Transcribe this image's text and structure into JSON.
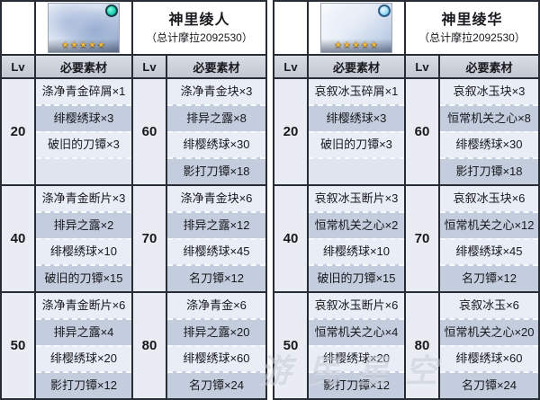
{
  "table": {
    "header": {
      "lv_label": "Lv",
      "materials_label": "必要素材"
    },
    "stars": "★★★★★"
  },
  "watermark": "游民星空",
  "colors": {
    "grid_line": "#272c35",
    "row_light": "#e9edf5",
    "row_dark": "#c4cddd",
    "header_bg": "#c8cdd6",
    "star_gold": "#f0b63a"
  },
  "characters": [
    {
      "name": "神里绫人",
      "mora_total": "（总计摩拉2092530）",
      "element": "hydro",
      "levels": [
        {
          "lv": "20",
          "materials": [
            "涤净青金碎屑×1",
            "绯樱绣球×3",
            "破旧的刀镡×3"
          ]
        },
        {
          "lv": "40",
          "materials": [
            "涤净青金断片×3",
            "排异之露×2",
            "绯樱绣球×10",
            "破旧的刀镡×15"
          ]
        },
        {
          "lv": "50",
          "materials": [
            "涤净青金断片×6",
            "排异之露×4",
            "绯樱绣球×20",
            "影打刀镡×12"
          ]
        },
        {
          "lv": "60",
          "materials": [
            "涤净青金块×3",
            "排异之露×8",
            "绯樱绣球×30",
            "影打刀镡×18"
          ]
        },
        {
          "lv": "70",
          "materials": [
            "涤净青金块×6",
            "排异之露×12",
            "绯樱绣球×45",
            "名刀镡×12"
          ]
        },
        {
          "lv": "80",
          "materials": [
            "涤净青金×6",
            "排异之露×20",
            "绯樱绣球×60",
            "名刀镡×24"
          ]
        }
      ]
    },
    {
      "name": "神里绫华",
      "mora_total": "（总计摩拉2092530）",
      "element": "cryo",
      "levels": [
        {
          "lv": "20",
          "materials": [
            "哀叙冰玉碎屑×1",
            "绯樱绣球×3",
            "破旧的刀镡×3"
          ]
        },
        {
          "lv": "40",
          "materials": [
            "哀叙冰玉断片×3",
            "恒常机关之心×2",
            "绯樱绣球×10",
            "破旧的刀镡×15"
          ]
        },
        {
          "lv": "50",
          "materials": [
            "哀叙冰玉断片×6",
            "恒常机关之心×4",
            "绯樱绣球×20",
            "影打刀镡×12"
          ]
        },
        {
          "lv": "60",
          "materials": [
            "哀叙冰玉块×3",
            "恒常机关之心×8",
            "绯樱绣球×30",
            "影打刀镡×18"
          ]
        },
        {
          "lv": "70",
          "materials": [
            "哀叙冰玉块×6",
            "恒常机关之心×12",
            "绯樱绣球×45",
            "名刀镡×12"
          ]
        },
        {
          "lv": "80",
          "materials": [
            "哀叙冰玉×6",
            "恒常机关之心×20",
            "绯樱绣球×60",
            "名刀镡×24"
          ]
        }
      ]
    }
  ]
}
